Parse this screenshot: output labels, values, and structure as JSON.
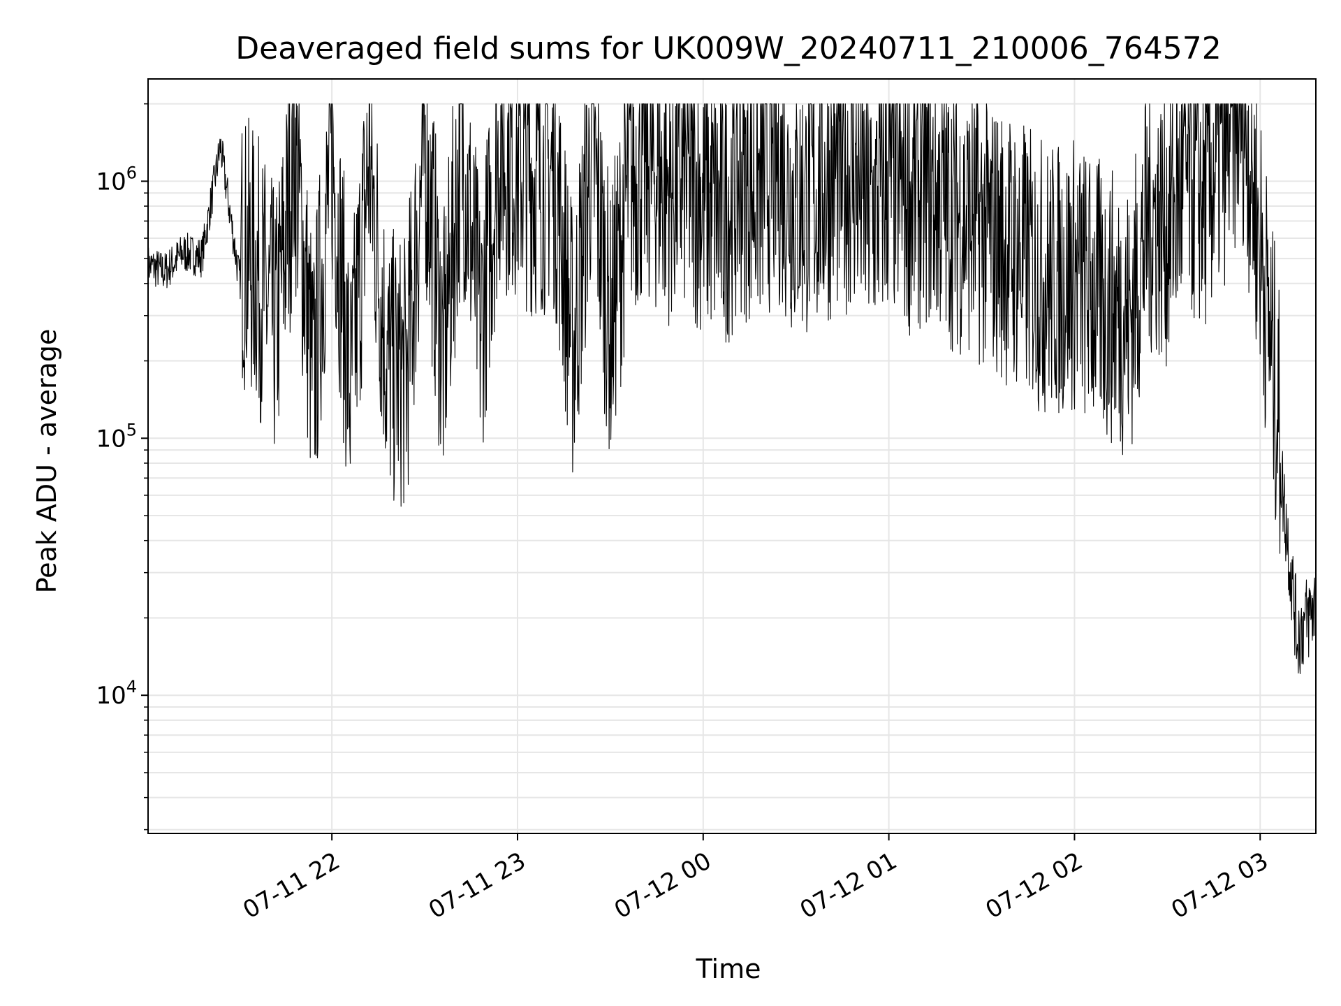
{
  "chart_data": {
    "type": "line",
    "title": "Deaveraged field sums for UK009W_20240711_210006_764572",
    "xlabel": "Time",
    "ylabel": "Peak ADU - average",
    "yscale": "log",
    "ylim": [
      2900,
      2500000
    ],
    "xlim": [
      "2024-07-11 21:00:36",
      "2024-07-12 03:18:00"
    ],
    "grid": true,
    "line_color": "#000000",
    "grid_color": "#e6e6e6",
    "x_ticks": [
      {
        "label": "07-11 22",
        "t": "2024-07-11 22:00"
      },
      {
        "label": "07-11 23",
        "t": "2024-07-11 23:00"
      },
      {
        "label": "07-12 00",
        "t": "2024-07-12 00:00"
      },
      {
        "label": "07-12 01",
        "t": "2024-07-12 01:00"
      },
      {
        "label": "07-12 02",
        "t": "2024-07-12 02:00"
      },
      {
        "label": "07-12 03",
        "t": "2024-07-12 03:00"
      }
    ],
    "y_ticks": [
      {
        "base": "10",
        "exp": "4",
        "value": 10000
      },
      {
        "base": "10",
        "exp": "5",
        "value": 100000
      },
      {
        "base": "10",
        "exp": "6",
        "value": 1000000
      }
    ],
    "series": [
      {
        "x": [
          "2024-07-11 21:00",
          "2024-07-11 21:06",
          "2024-07-11 21:12",
          "2024-07-11 21:18",
          "2024-07-11 21:24",
          "2024-07-11 21:30",
          "2024-07-11 21:36",
          "2024-07-11 21:42",
          "2024-07-11 21:48",
          "2024-07-11 21:54",
          "2024-07-11 22:00",
          "2024-07-11 22:06",
          "2024-07-11 22:12",
          "2024-07-11 22:18",
          "2024-07-11 22:24",
          "2024-07-11 22:30",
          "2024-07-11 22:36",
          "2024-07-11 22:42",
          "2024-07-11 22:48",
          "2024-07-11 22:54",
          "2024-07-11 23:00",
          "2024-07-11 23:06",
          "2024-07-11 23:12",
          "2024-07-11 23:18",
          "2024-07-11 23:24",
          "2024-07-11 23:30",
          "2024-07-11 23:36",
          "2024-07-11 23:42",
          "2024-07-11 23:48",
          "2024-07-11 23:54",
          "2024-07-12 00:00",
          "2024-07-12 00:06",
          "2024-07-12 00:12",
          "2024-07-12 00:18",
          "2024-07-12 00:24",
          "2024-07-12 00:30",
          "2024-07-12 00:36",
          "2024-07-12 00:42",
          "2024-07-12 00:48",
          "2024-07-12 00:54",
          "2024-07-12 01:00",
          "2024-07-12 01:06",
          "2024-07-12 01:12",
          "2024-07-12 01:18",
          "2024-07-12 01:24",
          "2024-07-12 01:30",
          "2024-07-12 01:36",
          "2024-07-12 01:42",
          "2024-07-12 01:48",
          "2024-07-12 01:54",
          "2024-07-12 02:00",
          "2024-07-12 02:06",
          "2024-07-12 02:12",
          "2024-07-12 02:18",
          "2024-07-12 02:24",
          "2024-07-12 02:30",
          "2024-07-12 02:36",
          "2024-07-12 02:42",
          "2024-07-12 02:48",
          "2024-07-12 02:54",
          "2024-07-12 03:00",
          "2024-07-12 03:06",
          "2024-07-12 03:12",
          "2024-07-12 03:18"
        ],
        "y": [
          450000,
          420000,
          500000,
          480000,
          1300000,
          400000,
          300000,
          180000,
          950000,
          110000,
          900000,
          100000,
          850000,
          130000,
          120000,
          950000,
          140000,
          1000000,
          180000,
          900000,
          800000,
          700000,
          750000,
          150000,
          950000,
          180000,
          700000,
          800000,
          650000,
          720000,
          600000,
          500000,
          700000,
          650000,
          800000,
          550000,
          600000,
          700000,
          750000,
          500000,
          700000,
          600000,
          650000,
          550000,
          500000,
          450000,
          400000,
          350000,
          300000,
          280000,
          300000,
          250000,
          220000,
          200000,
          500000,
          450000,
          700000,
          600000,
          900000,
          1500000,
          400000,
          80000,
          15000,
          20000
        ]
      }
    ]
  }
}
